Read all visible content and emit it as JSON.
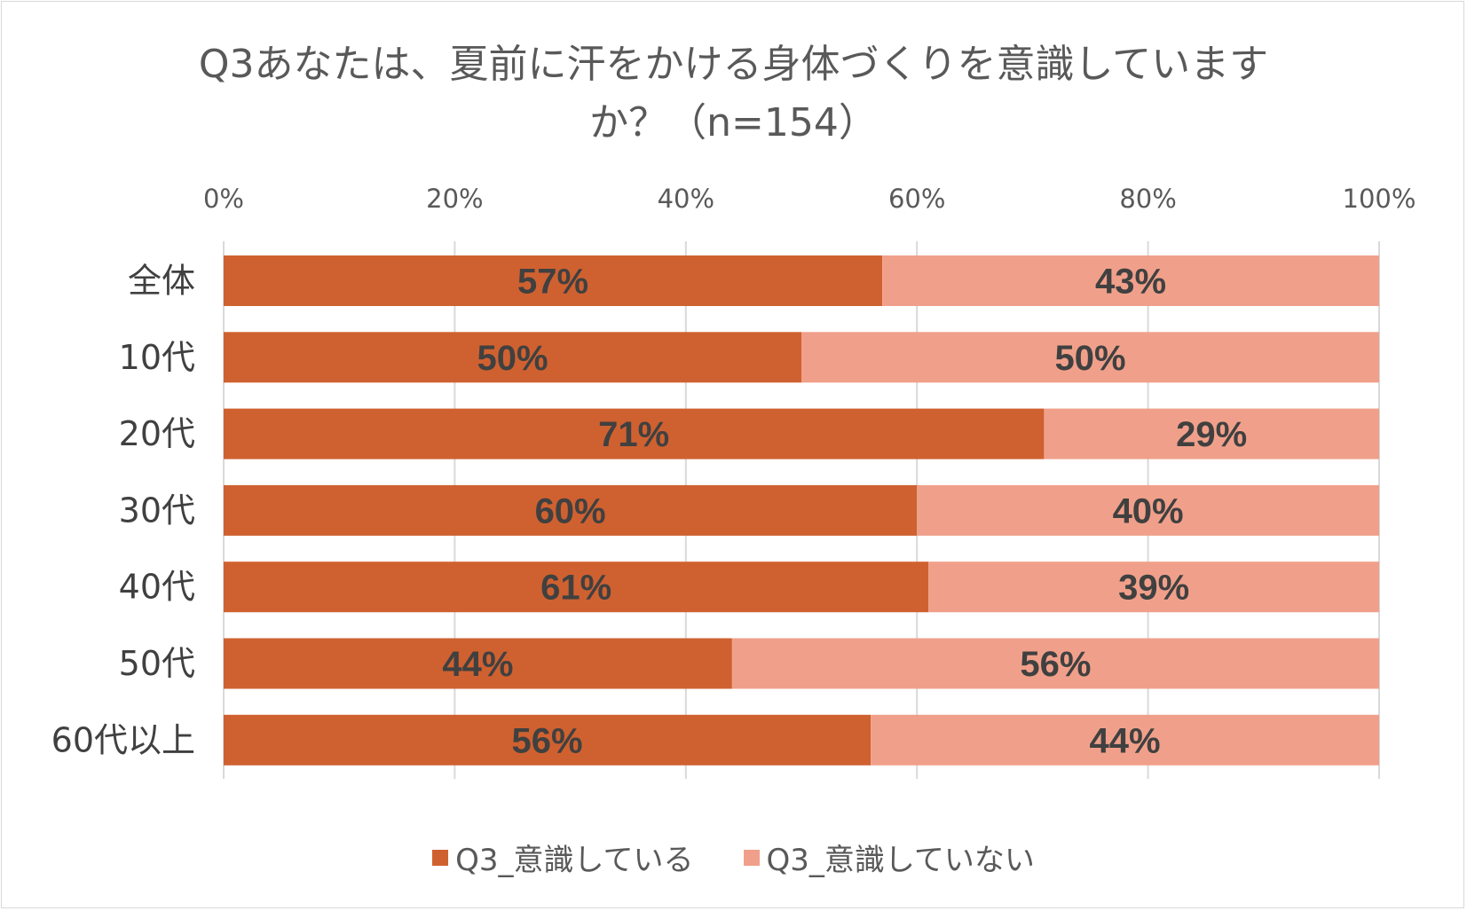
{
  "chart_data": {
    "type": "bar",
    "orientation": "horizontal",
    "stacked": "percent",
    "title_lines": [
      "Q3あなたは、夏前に汗をかける身体づくりを意識しています",
      "か？（n=154）"
    ],
    "categories": [
      "全体",
      "10代",
      "20代",
      "30代",
      "40代",
      "50代",
      "60代以上"
    ],
    "series": [
      {
        "name": "Q3_意識している",
        "color": "#cf6130",
        "values": [
          57,
          50,
          71,
          60,
          61,
          44,
          56
        ],
        "labels": [
          "57%",
          "50%",
          "71%",
          "60%",
          "61%",
          "44%",
          "56%"
        ]
      },
      {
        "name": "Q3_意識していない",
        "color": "#f0a08a",
        "values": [
          43,
          50,
          29,
          40,
          39,
          56,
          44
        ],
        "labels": [
          "43%",
          "50%",
          "29%",
          "40%",
          "39%",
          "56%",
          "44%"
        ]
      }
    ],
    "xlim": [
      0,
      100
    ],
    "x_ticks": [
      "0%",
      "20%",
      "40%",
      "60%",
      "80%",
      "100%"
    ],
    "x_axis_position": "top",
    "grid": true,
    "legend_position": "bottom"
  }
}
